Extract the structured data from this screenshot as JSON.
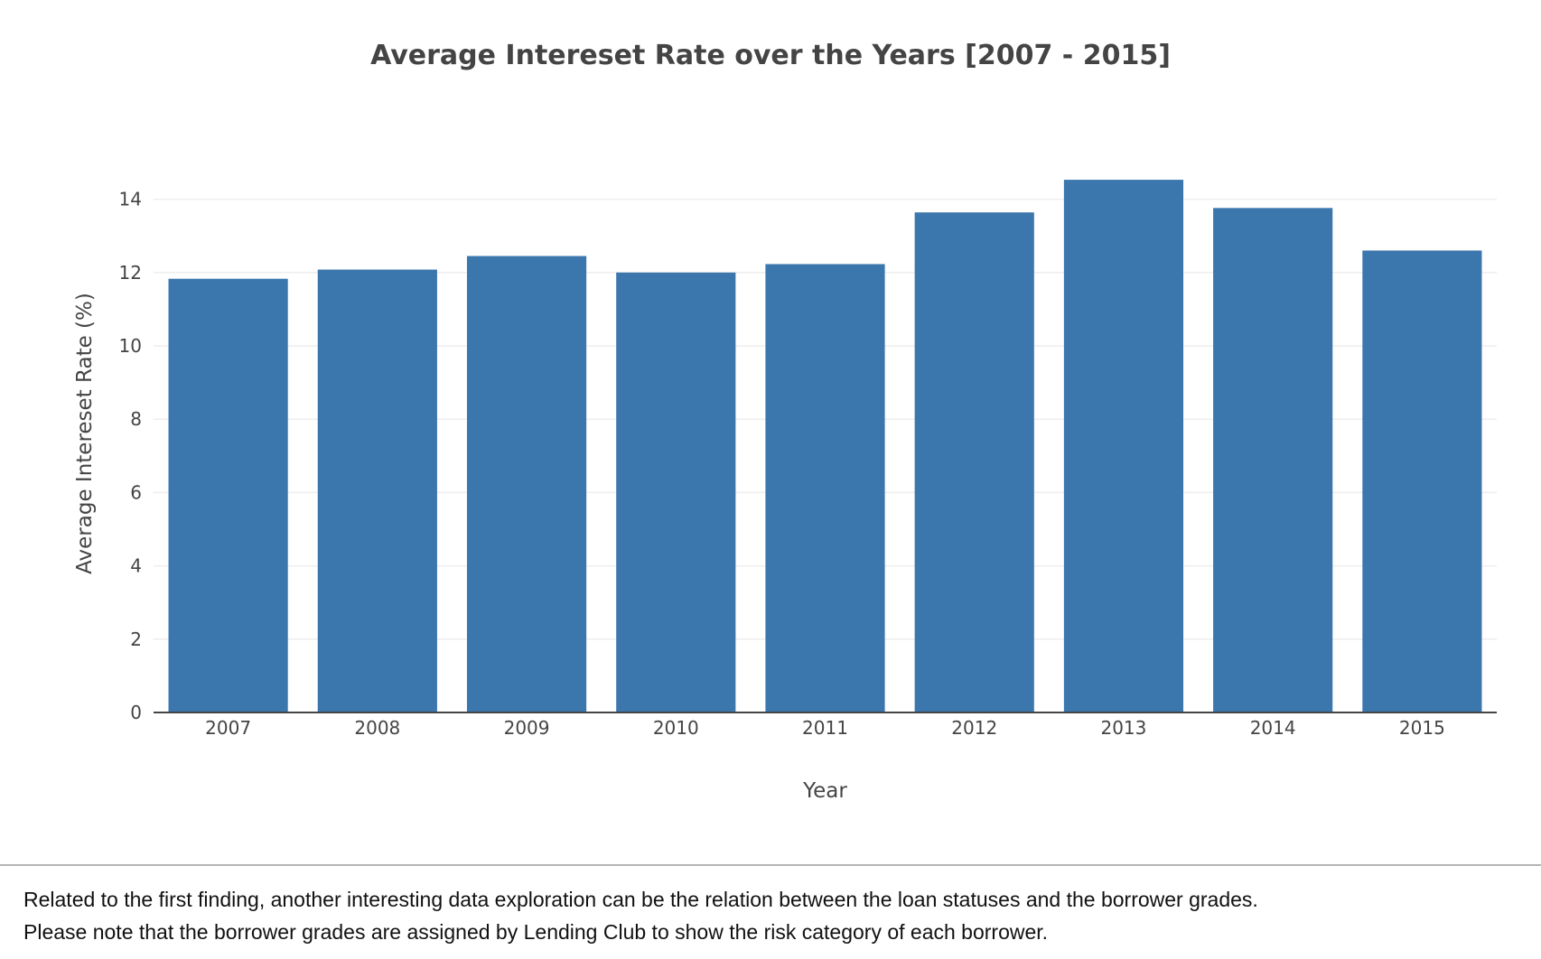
{
  "chart_data": {
    "type": "bar",
    "title": "Average Intereset Rate over the Years [2007 - 2015]",
    "xlabel": "Year",
    "ylabel": "Average Intereset Rate (%)",
    "categories": [
      "2007",
      "2008",
      "2009",
      "2010",
      "2011",
      "2012",
      "2013",
      "2014",
      "2015"
    ],
    "values": [
      11.83,
      12.08,
      12.45,
      12.0,
      12.23,
      13.64,
      14.53,
      13.76,
      12.6
    ],
    "ylim": [
      0,
      15.5
    ],
    "yticks": [
      0,
      2,
      4,
      6,
      8,
      10,
      12,
      14
    ],
    "grid": true,
    "legend": "none",
    "bar_color": "#3b76ad"
  },
  "notes": {
    "line1": "Related to the first finding, another interesting data exploration can be the relation between the loan statuses and the borrower grades.",
    "line2": "Please note that the borrower grades are assigned by Lending Club to show the risk category of each borrower."
  }
}
